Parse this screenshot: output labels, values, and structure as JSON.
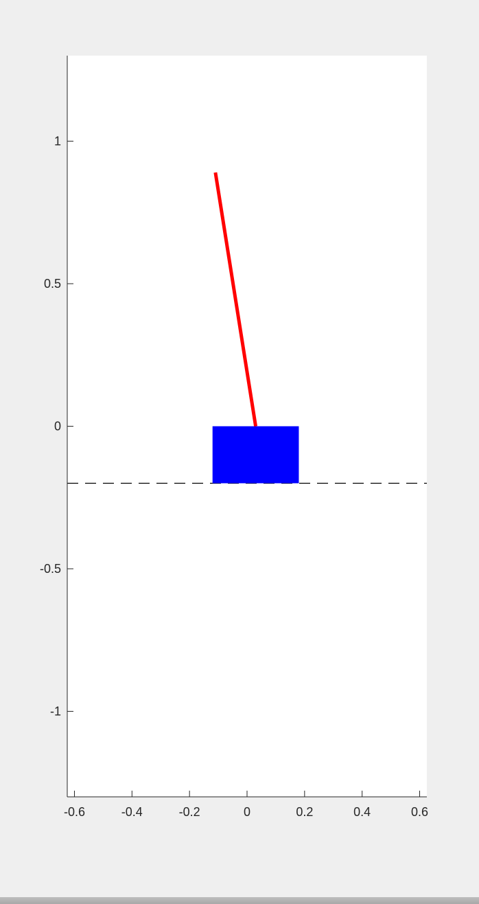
{
  "colors": {
    "figure_background": "#efefef",
    "axes_background": "#ffffff",
    "axis_color": "#262626",
    "cart_color": "#0000ff",
    "pole_color": "#ff0000",
    "track_color": "#000000"
  },
  "chart_data": {
    "type": "line",
    "title": "",
    "xlabel": "",
    "ylabel": "",
    "xlim": [
      -0.625,
      0.625
    ],
    "ylim": [
      -1.3,
      1.3
    ],
    "grid": false,
    "box": false,
    "xticks": [
      -0.6,
      -0.4,
      -0.2,
      0,
      0.2,
      0.4,
      0.6
    ],
    "xtick_labels": [
      "-0.6",
      "-0.4",
      "-0.2",
      "0",
      "0.2",
      "0.4",
      "0.6"
    ],
    "yticks": [
      1,
      0.5,
      0,
      -0.5,
      -1
    ],
    "ytick_labels": [
      "1",
      "0.5",
      "0",
      "-0.5",
      "-1"
    ],
    "track": {
      "style": "dashed",
      "y": -0.2,
      "x": [
        -0.625,
        0.625
      ]
    },
    "cart": {
      "x": [
        -0.12,
        0.18
      ],
      "y": [
        -0.2,
        0
      ]
    },
    "pole": {
      "x": [
        0.03,
        -0.11
      ],
      "y": [
        0,
        0.89
      ]
    }
  }
}
